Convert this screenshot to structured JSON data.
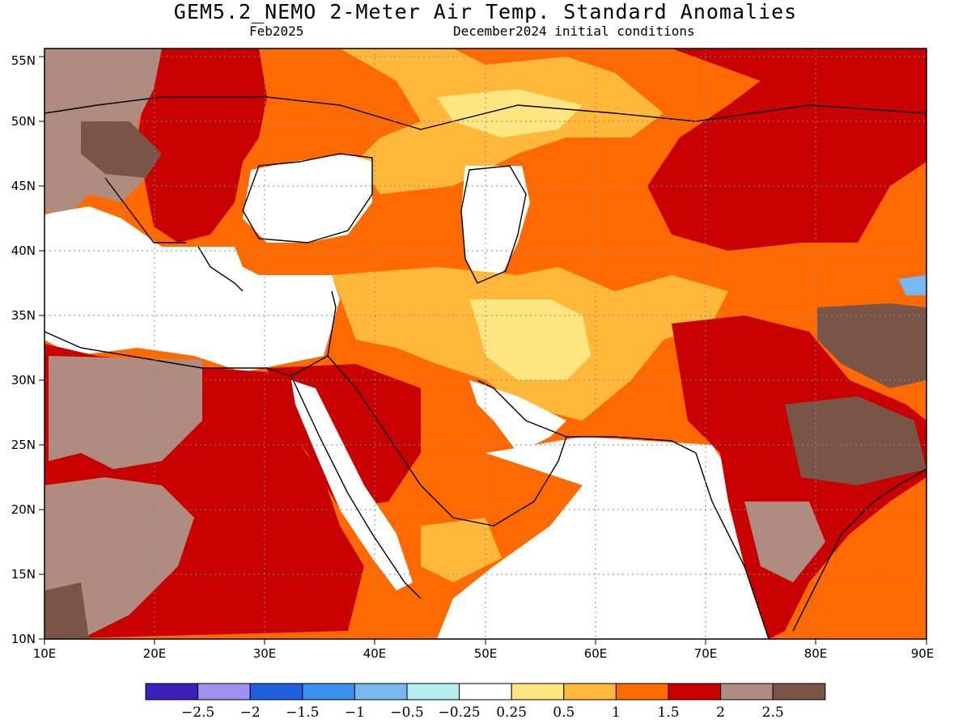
{
  "header": {
    "title": "GEM5.2_NEMO 2-Meter Air Temp. Standard Anomalies",
    "valid_month": "Feb2025",
    "init": "December2024 initial conditions"
  },
  "axes": {
    "lat_labels": [
      "10N",
      "15N",
      "20N",
      "25N",
      "30N",
      "35N",
      "40N",
      "45N",
      "50N",
      "55N"
    ],
    "lon_labels": [
      "10E",
      "20E",
      "30E",
      "40E",
      "50E",
      "60E",
      "70E",
      "80E",
      "90E"
    ]
  },
  "colorbar": {
    "colors": [
      "#3a1fb8",
      "#a090f0",
      "#1f5fe0",
      "#3a90ef",
      "#78b8f0",
      "#b4eef0",
      "#ffffff",
      "#ffe680",
      "#ffb83a",
      "#ff6a00",
      "#c80000",
      "#b08c80",
      "#7a5447"
    ],
    "labels": [
      "-2.5",
      "-2",
      "-1.5",
      "-1",
      "-0.5",
      "-0.25",
      "0.25",
      "0.5",
      "1",
      "1.5",
      "2",
      "2.5"
    ]
  },
  "map_regions": {
    "region_colors": {
      "white": "#ffffff",
      "yellow": "#ffe680",
      "light_orange": "#ffb83a",
      "orange": "#ff6a00",
      "red": "#c80000",
      "light_brown": "#b08c80",
      "dark_brown": "#7a5447",
      "light_blue": "#78b8f0"
    }
  }
}
